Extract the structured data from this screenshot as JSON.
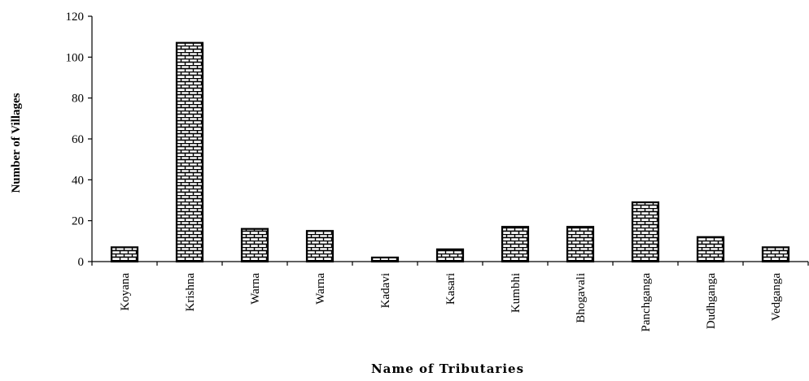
{
  "chart_data": {
    "type": "bar",
    "title": "",
    "xlabel": "Name of Tributaries",
    "ylabel": "Number of Villages",
    "categories": [
      "Koyana",
      "Krishna",
      "Warna",
      "Warna",
      "Kadavi",
      "Kasari",
      "Kumbhi",
      "Bhogavali",
      "Panchganga",
      "Dudhganga",
      "Vedganga"
    ],
    "values": [
      7,
      107,
      16,
      15,
      2,
      6,
      17,
      17,
      29,
      12,
      7
    ],
    "ylim": [
      0,
      120
    ],
    "yticks": [
      "0",
      "20",
      "40",
      "60",
      "80",
      "100",
      "120"
    ],
    "grid": false,
    "legend": "none",
    "bar_fill": "brick-pattern",
    "colors": {
      "bar_stroke": "#000000",
      "pattern": "#000000",
      "background": "#ffffff"
    }
  }
}
